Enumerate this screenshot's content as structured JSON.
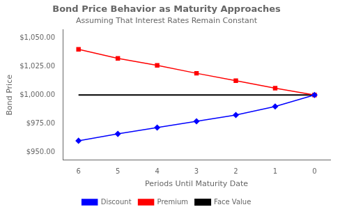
{
  "chart_data": {
    "type": "line",
    "title": "Bond Price Behavior as Maturity Approaches",
    "subtitle": "Assuming That Interest Rates Remain Constant",
    "xlabel": "Periods Until Maturity Date",
    "ylabel": "Bond Price",
    "x": [
      6,
      5,
      4,
      3,
      2,
      1,
      0
    ],
    "series": [
      {
        "name": "Discount",
        "color": "#0000FF",
        "marker": "diamond",
        "values": [
          960.0,
          966.0,
          971.5,
          977.0,
          982.5,
          990.0,
          1000.0
        ]
      },
      {
        "name": "Premium",
        "color": "#FF0000",
        "marker": "square",
        "values": [
          1040.0,
          1032.0,
          1026.0,
          1019.0,
          1012.5,
          1006.0,
          1000.0
        ]
      },
      {
        "name": "Face Value",
        "color": "#000000",
        "marker": "none",
        "values": [
          1000.0,
          1000.0,
          1000.0,
          1000.0,
          1000.0,
          1000.0,
          1000.0
        ]
      }
    ],
    "xlim": [
      6.4,
      -0.4
    ],
    "xticks": [
      6,
      5,
      4,
      3,
      2,
      1,
      0
    ],
    "ylim": [
      943,
      1057
    ],
    "yticks": [
      {
        "value": 950,
        "label": "$950.00"
      },
      {
        "value": 975,
        "label": "$975.00"
      },
      {
        "value": 1000,
        "label": "$1,000.00"
      },
      {
        "value": 1025,
        "label": "$1,025.00"
      },
      {
        "value": 1050,
        "label": "$1,050.00"
      }
    ],
    "grid": false,
    "legend": "bottom"
  }
}
